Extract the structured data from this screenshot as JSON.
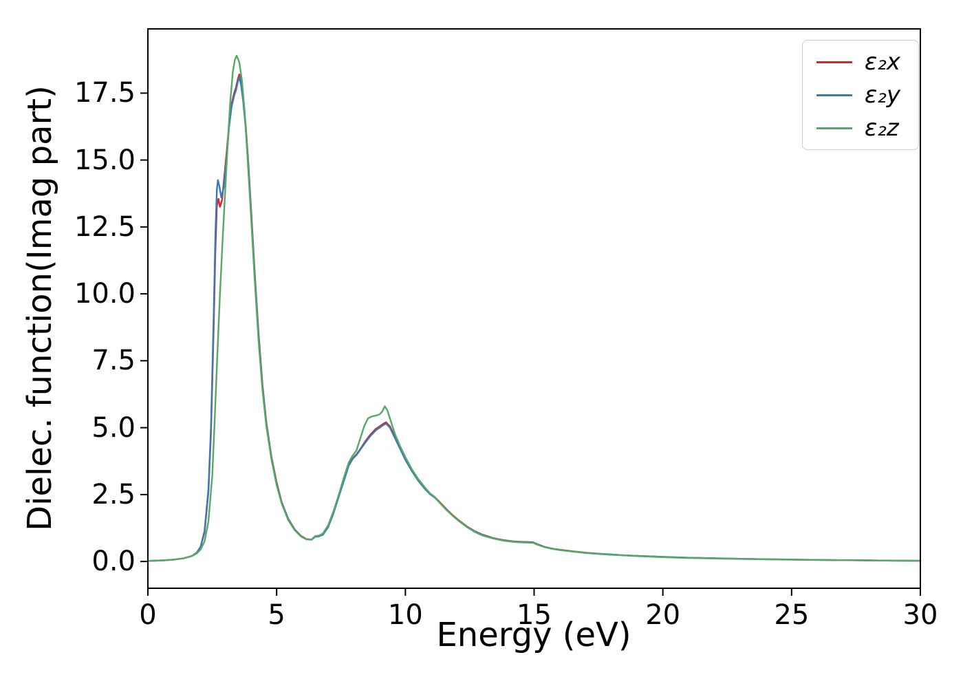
{
  "chart_data": {
    "type": "line",
    "title": "",
    "xlabel": "Energy (eV)",
    "ylabel": "Dielec. function(Imag part)",
    "xlim": [
      0,
      30
    ],
    "ylim": [
      -1.0,
      19.9
    ],
    "grid": false,
    "legend_position": "upper right",
    "xticks": [
      {
        "value": 0,
        "label": "0"
      },
      {
        "value": 5,
        "label": "5"
      },
      {
        "value": 10,
        "label": "10"
      },
      {
        "value": 15,
        "label": "15"
      },
      {
        "value": 20,
        "label": "20"
      },
      {
        "value": 25,
        "label": "25"
      },
      {
        "value": 30,
        "label": "30"
      }
    ],
    "yticks": [
      {
        "value": 0.0,
        "label": "0.0"
      },
      {
        "value": 2.5,
        "label": "2.5"
      },
      {
        "value": 5.0,
        "label": "5.0"
      },
      {
        "value": 7.5,
        "label": "7.5"
      },
      {
        "value": 10.0,
        "label": "10.0"
      },
      {
        "value": 12.5,
        "label": "12.5"
      },
      {
        "value": 15.0,
        "label": "15.0"
      },
      {
        "value": 17.5,
        "label": "17.5"
      }
    ],
    "series": [
      {
        "name": "epsilon2-x",
        "label": "ε₂x",
        "color": "#d62728",
        "points": [
          [
            0,
            0.02
          ],
          [
            0.6,
            0.04
          ],
          [
            1.0,
            0.07
          ],
          [
            1.4,
            0.12
          ],
          [
            1.7,
            0.2
          ],
          [
            1.9,
            0.33
          ],
          [
            2.05,
            0.55
          ],
          [
            2.2,
            1.1
          ],
          [
            2.35,
            2.6
          ],
          [
            2.45,
            4.8
          ],
          [
            2.55,
            8.6
          ],
          [
            2.62,
            11.6
          ],
          [
            2.68,
            13.3
          ],
          [
            2.74,
            13.55
          ],
          [
            2.8,
            13.25
          ],
          [
            2.88,
            13.5
          ],
          [
            2.95,
            14.2
          ],
          [
            3.05,
            15.2
          ],
          [
            3.15,
            16.3
          ],
          [
            3.25,
            17.1
          ],
          [
            3.35,
            17.5
          ],
          [
            3.42,
            17.7
          ],
          [
            3.5,
            18.05
          ],
          [
            3.55,
            18.2
          ],
          [
            3.62,
            17.9
          ],
          [
            3.7,
            17.3
          ],
          [
            3.8,
            16.3
          ],
          [
            3.9,
            14.9
          ],
          [
            4.0,
            13.3
          ],
          [
            4.15,
            10.8
          ],
          [
            4.3,
            8.5
          ],
          [
            4.45,
            6.6
          ],
          [
            4.6,
            5.2
          ],
          [
            4.8,
            3.9
          ],
          [
            5.0,
            2.95
          ],
          [
            5.2,
            2.2
          ],
          [
            5.45,
            1.6
          ],
          [
            5.7,
            1.2
          ],
          [
            5.95,
            0.95
          ],
          [
            6.15,
            0.84
          ],
          [
            6.35,
            0.82
          ],
          [
            6.5,
            0.93
          ],
          [
            6.65,
            0.95
          ],
          [
            6.8,
            1.02
          ],
          [
            7.0,
            1.3
          ],
          [
            7.2,
            1.8
          ],
          [
            7.4,
            2.4
          ],
          [
            7.6,
            3.0
          ],
          [
            7.8,
            3.6
          ],
          [
            7.95,
            3.85
          ],
          [
            8.1,
            4.0
          ],
          [
            8.25,
            4.2
          ],
          [
            8.45,
            4.5
          ],
          [
            8.65,
            4.75
          ],
          [
            8.85,
            4.95
          ],
          [
            9.0,
            5.05
          ],
          [
            9.15,
            5.15
          ],
          [
            9.25,
            5.2
          ],
          [
            9.4,
            5.05
          ],
          [
            9.55,
            4.75
          ],
          [
            9.75,
            4.35
          ],
          [
            10.0,
            3.85
          ],
          [
            10.25,
            3.4
          ],
          [
            10.5,
            3.05
          ],
          [
            10.75,
            2.75
          ],
          [
            10.95,
            2.55
          ],
          [
            11.15,
            2.4
          ],
          [
            11.35,
            2.2
          ],
          [
            11.6,
            1.95
          ],
          [
            11.85,
            1.72
          ],
          [
            12.1,
            1.52
          ],
          [
            12.4,
            1.3
          ],
          [
            12.7,
            1.13
          ],
          [
            13.0,
            1.0
          ],
          [
            13.4,
            0.88
          ],
          [
            13.8,
            0.8
          ],
          [
            14.2,
            0.75
          ],
          [
            14.6,
            0.73
          ],
          [
            14.95,
            0.72
          ],
          [
            15.15,
            0.64
          ],
          [
            15.4,
            0.55
          ],
          [
            15.7,
            0.48
          ],
          [
            16.0,
            0.44
          ],
          [
            16.5,
            0.38
          ],
          [
            17.0,
            0.33
          ],
          [
            17.5,
            0.29
          ],
          [
            18.0,
            0.26
          ],
          [
            18.5,
            0.23
          ],
          [
            19.0,
            0.21
          ],
          [
            19.5,
            0.19
          ],
          [
            20.0,
            0.17
          ],
          [
            21.0,
            0.14
          ],
          [
            22.0,
            0.12
          ],
          [
            23.0,
            0.1
          ],
          [
            24.0,
            0.085
          ],
          [
            25.0,
            0.072
          ],
          [
            26.0,
            0.06
          ],
          [
            27.0,
            0.05
          ],
          [
            28.0,
            0.04
          ],
          [
            29.0,
            0.032
          ],
          [
            30.0,
            0.025
          ]
        ]
      },
      {
        "name": "epsilon2-y",
        "label": "ε₂y",
        "color": "#3b78b5",
        "points": [
          [
            0,
            0.02
          ],
          [
            0.6,
            0.04
          ],
          [
            1.0,
            0.07
          ],
          [
            1.4,
            0.12
          ],
          [
            1.7,
            0.2
          ],
          [
            1.9,
            0.33
          ],
          [
            2.05,
            0.55
          ],
          [
            2.2,
            1.15
          ],
          [
            2.35,
            2.7
          ],
          [
            2.45,
            5.0
          ],
          [
            2.55,
            9.0
          ],
          [
            2.62,
            12.2
          ],
          [
            2.68,
            13.9
          ],
          [
            2.72,
            14.25
          ],
          [
            2.78,
            14.0
          ],
          [
            2.85,
            13.6
          ],
          [
            2.95,
            14.0
          ],
          [
            3.05,
            15.0
          ],
          [
            3.15,
            16.2
          ],
          [
            3.25,
            17.0
          ],
          [
            3.35,
            17.4
          ],
          [
            3.42,
            17.6
          ],
          [
            3.5,
            17.95
          ],
          [
            3.55,
            18.1
          ],
          [
            3.62,
            17.8
          ],
          [
            3.7,
            17.2
          ],
          [
            3.8,
            16.2
          ],
          [
            3.9,
            14.8
          ],
          [
            4.0,
            13.2
          ],
          [
            4.15,
            10.7
          ],
          [
            4.3,
            8.4
          ],
          [
            4.45,
            6.5
          ],
          [
            4.6,
            5.15
          ],
          [
            4.8,
            3.85
          ],
          [
            5.0,
            2.9
          ],
          [
            5.2,
            2.18
          ],
          [
            5.45,
            1.58
          ],
          [
            5.7,
            1.18
          ],
          [
            5.95,
            0.94
          ],
          [
            6.15,
            0.83
          ],
          [
            6.35,
            0.81
          ],
          [
            6.5,
            0.92
          ],
          [
            6.65,
            0.94
          ],
          [
            6.8,
            1.0
          ],
          [
            7.0,
            1.28
          ],
          [
            7.2,
            1.78
          ],
          [
            7.4,
            2.38
          ],
          [
            7.6,
            2.98
          ],
          [
            7.8,
            3.58
          ],
          [
            7.95,
            3.83
          ],
          [
            8.1,
            3.98
          ],
          [
            8.25,
            4.18
          ],
          [
            8.45,
            4.45
          ],
          [
            8.65,
            4.7
          ],
          [
            8.85,
            4.9
          ],
          [
            9.0,
            5.0
          ],
          [
            9.15,
            5.1
          ],
          [
            9.25,
            5.15
          ],
          [
            9.4,
            5.0
          ],
          [
            9.55,
            4.7
          ],
          [
            9.75,
            4.3
          ],
          [
            10.0,
            3.8
          ],
          [
            10.25,
            3.38
          ],
          [
            10.5,
            3.02
          ],
          [
            10.75,
            2.72
          ],
          [
            10.95,
            2.52
          ],
          [
            11.15,
            2.38
          ],
          [
            11.35,
            2.18
          ],
          [
            11.6,
            1.93
          ],
          [
            11.85,
            1.7
          ],
          [
            12.1,
            1.5
          ],
          [
            12.4,
            1.28
          ],
          [
            12.7,
            1.12
          ],
          [
            13.0,
            0.99
          ],
          [
            13.4,
            0.87
          ],
          [
            13.8,
            0.79
          ],
          [
            14.2,
            0.74
          ],
          [
            14.6,
            0.72
          ],
          [
            14.95,
            0.71
          ],
          [
            15.15,
            0.63
          ],
          [
            15.4,
            0.54
          ],
          [
            15.7,
            0.48
          ],
          [
            16.0,
            0.43
          ],
          [
            16.5,
            0.37
          ],
          [
            17.0,
            0.32
          ],
          [
            17.5,
            0.29
          ],
          [
            18.0,
            0.26
          ],
          [
            18.5,
            0.23
          ],
          [
            19.0,
            0.21
          ],
          [
            19.5,
            0.19
          ],
          [
            20.0,
            0.17
          ],
          [
            21.0,
            0.14
          ],
          [
            22.0,
            0.12
          ],
          [
            23.0,
            0.1
          ],
          [
            24.0,
            0.085
          ],
          [
            25.0,
            0.072
          ],
          [
            26.0,
            0.06
          ],
          [
            27.0,
            0.05
          ],
          [
            28.0,
            0.04
          ],
          [
            29.0,
            0.032
          ],
          [
            30.0,
            0.025
          ]
        ]
      },
      {
        "name": "epsilon2-z",
        "label": "ε₂z",
        "color": "#55a868",
        "points": [
          [
            0,
            0.02
          ],
          [
            0.6,
            0.04
          ],
          [
            1.0,
            0.07
          ],
          [
            1.4,
            0.12
          ],
          [
            1.7,
            0.2
          ],
          [
            1.9,
            0.3
          ],
          [
            2.05,
            0.45
          ],
          [
            2.2,
            0.75
          ],
          [
            2.35,
            1.5
          ],
          [
            2.5,
            3.2
          ],
          [
            2.6,
            5.4
          ],
          [
            2.7,
            7.8
          ],
          [
            2.8,
            10.0
          ],
          [
            2.9,
            12.0
          ],
          [
            3.0,
            13.8
          ],
          [
            3.1,
            15.6
          ],
          [
            3.2,
            17.2
          ],
          [
            3.3,
            18.3
          ],
          [
            3.38,
            18.75
          ],
          [
            3.45,
            18.9
          ],
          [
            3.55,
            18.65
          ],
          [
            3.65,
            18.0
          ],
          [
            3.75,
            16.9
          ],
          [
            3.85,
            15.4
          ],
          [
            4.0,
            13.0
          ],
          [
            4.15,
            10.5
          ],
          [
            4.3,
            8.2
          ],
          [
            4.45,
            6.4
          ],
          [
            4.6,
            5.05
          ],
          [
            4.8,
            3.8
          ],
          [
            5.0,
            2.85
          ],
          [
            5.2,
            2.15
          ],
          [
            5.45,
            1.55
          ],
          [
            5.7,
            1.17
          ],
          [
            5.95,
            0.93
          ],
          [
            6.15,
            0.83
          ],
          [
            6.35,
            0.82
          ],
          [
            6.5,
            0.95
          ],
          [
            6.65,
            0.97
          ],
          [
            6.8,
            1.05
          ],
          [
            7.0,
            1.35
          ],
          [
            7.2,
            1.85
          ],
          [
            7.4,
            2.45
          ],
          [
            7.6,
            3.1
          ],
          [
            7.8,
            3.7
          ],
          [
            7.95,
            3.95
          ],
          [
            8.1,
            4.15
          ],
          [
            8.25,
            4.6
          ],
          [
            8.4,
            5.05
          ],
          [
            8.55,
            5.35
          ],
          [
            8.7,
            5.42
          ],
          [
            8.85,
            5.45
          ],
          [
            9.0,
            5.5
          ],
          [
            9.1,
            5.6
          ],
          [
            9.2,
            5.8
          ],
          [
            9.3,
            5.65
          ],
          [
            9.45,
            5.2
          ],
          [
            9.6,
            4.75
          ],
          [
            9.8,
            4.3
          ],
          [
            10.0,
            3.9
          ],
          [
            10.25,
            3.45
          ],
          [
            10.5,
            3.08
          ],
          [
            10.75,
            2.78
          ],
          [
            10.95,
            2.55
          ],
          [
            11.15,
            2.4
          ],
          [
            11.35,
            2.18
          ],
          [
            11.6,
            1.92
          ],
          [
            11.85,
            1.7
          ],
          [
            12.1,
            1.5
          ],
          [
            12.4,
            1.28
          ],
          [
            12.7,
            1.1
          ],
          [
            13.0,
            0.97
          ],
          [
            13.4,
            0.86
          ],
          [
            13.8,
            0.78
          ],
          [
            14.2,
            0.73
          ],
          [
            14.6,
            0.71
          ],
          [
            14.95,
            0.7
          ],
          [
            15.15,
            0.62
          ],
          [
            15.4,
            0.54
          ],
          [
            15.7,
            0.47
          ],
          [
            16.0,
            0.43
          ],
          [
            16.5,
            0.37
          ],
          [
            17.0,
            0.32
          ],
          [
            17.5,
            0.28
          ],
          [
            18.0,
            0.25
          ],
          [
            18.5,
            0.23
          ],
          [
            19.0,
            0.2
          ],
          [
            19.5,
            0.18
          ],
          [
            20.0,
            0.16
          ],
          [
            21.0,
            0.13
          ],
          [
            22.0,
            0.11
          ],
          [
            23.0,
            0.095
          ],
          [
            24.0,
            0.08
          ],
          [
            25.0,
            0.068
          ],
          [
            26.0,
            0.057
          ],
          [
            27.0,
            0.047
          ],
          [
            28.0,
            0.038
          ],
          [
            29.0,
            0.03
          ],
          [
            30.0,
            0.024
          ]
        ]
      }
    ]
  }
}
